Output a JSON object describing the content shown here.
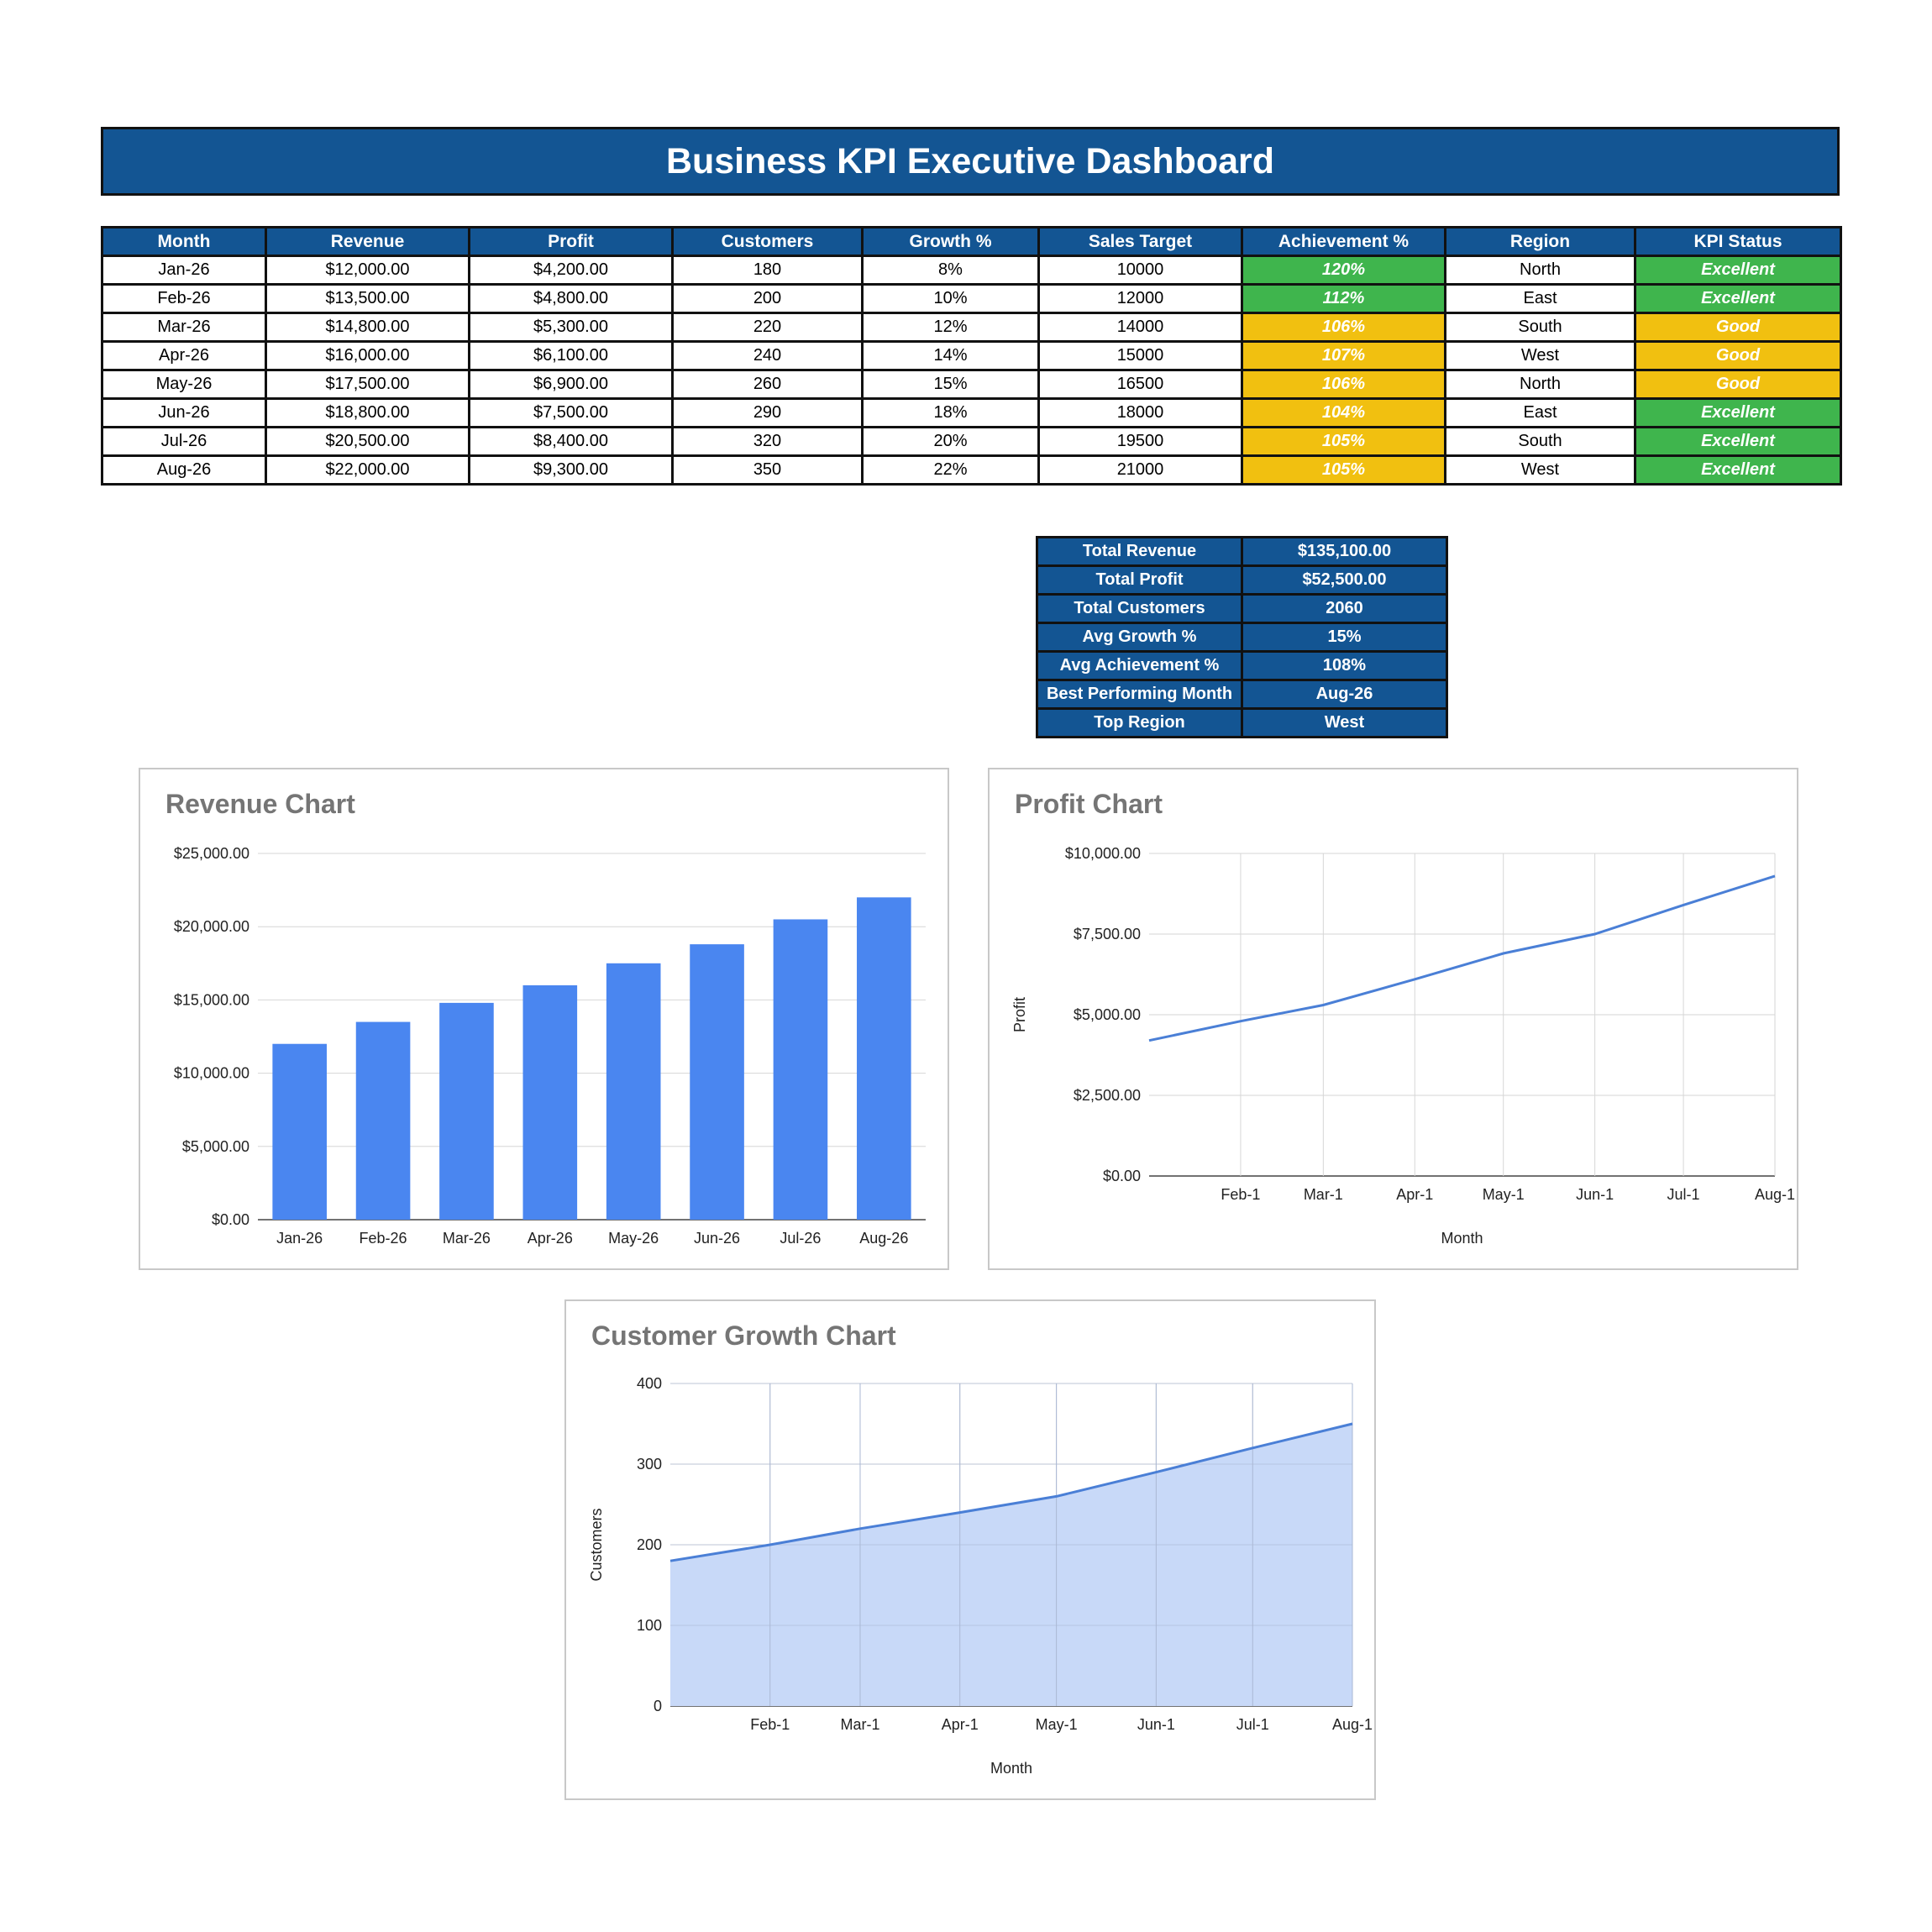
{
  "header": {
    "title": "Business KPI Executive Dashboard"
  },
  "kpi_table": {
    "columns": [
      "Month",
      "Revenue",
      "Profit",
      "Customers",
      "Growth %",
      "Sales Target",
      "Achievement %",
      "Region",
      "KPI Status"
    ],
    "rows": [
      {
        "month": "Jan-26",
        "revenue": "$12,000.00",
        "profit": "$4,200.00",
        "customers": "180",
        "growth": "8%",
        "target": "10000",
        "achievement": "120%",
        "region": "North",
        "status": "Excellent"
      },
      {
        "month": "Feb-26",
        "revenue": "$13,500.00",
        "profit": "$4,800.00",
        "customers": "200",
        "growth": "10%",
        "target": "12000",
        "achievement": "112%",
        "region": "East",
        "status": "Excellent"
      },
      {
        "month": "Mar-26",
        "revenue": "$14,800.00",
        "profit": "$5,300.00",
        "customers": "220",
        "growth": "12%",
        "target": "14000",
        "achievement": "106%",
        "region": "South",
        "status": "Good"
      },
      {
        "month": "Apr-26",
        "revenue": "$16,000.00",
        "profit": "$6,100.00",
        "customers": "240",
        "growth": "14%",
        "target": "15000",
        "achievement": "107%",
        "region": "West",
        "status": "Good"
      },
      {
        "month": "May-26",
        "revenue": "$17,500.00",
        "profit": "$6,900.00",
        "customers": "260",
        "growth": "15%",
        "target": "16500",
        "achievement": "106%",
        "region": "North",
        "status": "Good"
      },
      {
        "month": "Jun-26",
        "revenue": "$18,800.00",
        "profit": "$7,500.00",
        "customers": "290",
        "growth": "18%",
        "target": "18000",
        "achievement": "104%",
        "region": "East",
        "status": "Excellent"
      },
      {
        "month": "Jul-26",
        "revenue": "$20,500.00",
        "profit": "$8,400.00",
        "customers": "320",
        "growth": "20%",
        "target": "19500",
        "achievement": "105%",
        "region": "South",
        "status": "Excellent"
      },
      {
        "month": "Aug-26",
        "revenue": "$22,000.00",
        "profit": "$9,300.00",
        "customers": "350",
        "growth": "22%",
        "target": "21000",
        "achievement": "105%",
        "region": "West",
        "status": "Excellent"
      }
    ],
    "achievement_colors": [
      "#3fb54d",
      "#3fb54d",
      "#f1c010",
      "#f1c010",
      "#f1c010",
      "#f1c010",
      "#f1c010",
      "#f1c010"
    ],
    "status_colors": {
      "Excellent": "#3fb54d",
      "Good": "#f1c010"
    }
  },
  "summary": [
    {
      "label": "Total Revenue",
      "value": "$135,100.00"
    },
    {
      "label": "Total Profit",
      "value": "$52,500.00"
    },
    {
      "label": "Total Customers",
      "value": "2060"
    },
    {
      "label": "Avg Growth %",
      "value": "15%"
    },
    {
      "label": "Avg Achievement %",
      "value": "108%"
    },
    {
      "label": "Best Performing Month",
      "value": "Aug-26"
    },
    {
      "label": "Top Region",
      "value": "West"
    }
  ],
  "chart_data": [
    {
      "type": "bar",
      "title": "Revenue Chart",
      "categories": [
        "Jan-26",
        "Feb-26",
        "Mar-26",
        "Apr-26",
        "May-26",
        "Jun-26",
        "Jul-26",
        "Aug-26"
      ],
      "values": [
        12000,
        13500,
        14800,
        16000,
        17500,
        18800,
        20500,
        22000
      ],
      "xlabel": "",
      "ylabel": "",
      "ylim": [
        0,
        25000
      ],
      "yticks": [
        0,
        5000,
        10000,
        15000,
        20000,
        25000
      ],
      "ytick_labels": [
        "$0.00",
        "$5,000.00",
        "$10,000.00",
        "$15,000.00",
        "$20,000.00",
        "$25,000.00"
      ],
      "color": "#4a86f0",
      "grid": true,
      "legend": "none"
    },
    {
      "type": "line",
      "title": "Profit Chart",
      "x": [
        "2026-01-01",
        "2026-02-01",
        "2026-03-01",
        "2026-04-01",
        "2026-05-01",
        "2026-06-01",
        "2026-07-01",
        "2026-08-01"
      ],
      "values": [
        4200,
        4800,
        5300,
        6100,
        6900,
        7500,
        8400,
        9300
      ],
      "xticks": [
        "2026-02-01",
        "2026-03-01",
        "2026-04-01",
        "2026-05-01",
        "2026-06-01",
        "2026-07-01",
        "2026-08-01"
      ],
      "xtick_labels": [
        "Feb-1",
        "Mar-1",
        "Apr-1",
        "May-1",
        "Jun-1",
        "Jul-1",
        "Aug-1"
      ],
      "xlabel": "Month",
      "ylabel": "Profit",
      "ylim": [
        0,
        10000
      ],
      "yticks": [
        0,
        2500,
        5000,
        7500,
        10000
      ],
      "ytick_labels": [
        "$0.00",
        "$2,500.00",
        "$5,000.00",
        "$7,500.00",
        "$10,000.00"
      ],
      "color": "#4a7fd6",
      "grid": true,
      "legend": "none"
    },
    {
      "type": "area",
      "title": "Customer Growth Chart",
      "x": [
        "2026-01-01",
        "2026-02-01",
        "2026-03-01",
        "2026-04-01",
        "2026-05-01",
        "2026-06-01",
        "2026-07-01",
        "2026-08-01"
      ],
      "values": [
        180,
        200,
        220,
        240,
        260,
        290,
        320,
        350
      ],
      "xticks": [
        "2026-02-01",
        "2026-03-01",
        "2026-04-01",
        "2026-05-01",
        "2026-06-01",
        "2026-07-01",
        "2026-08-01"
      ],
      "xtick_labels": [
        "Feb-1",
        "Mar-1",
        "Apr-1",
        "May-1",
        "Jun-1",
        "Jul-1",
        "Aug-1"
      ],
      "xlabel": "Month",
      "ylabel": "Customers",
      "ylim": [
        0,
        400
      ],
      "yticks": [
        0,
        100,
        200,
        300,
        400
      ],
      "ytick_labels": [
        "0",
        "100",
        "200",
        "300",
        "400"
      ],
      "color": "#4a7fd6",
      "fill_color": "#c8d9f8",
      "grid": true,
      "legend": "none"
    }
  ]
}
